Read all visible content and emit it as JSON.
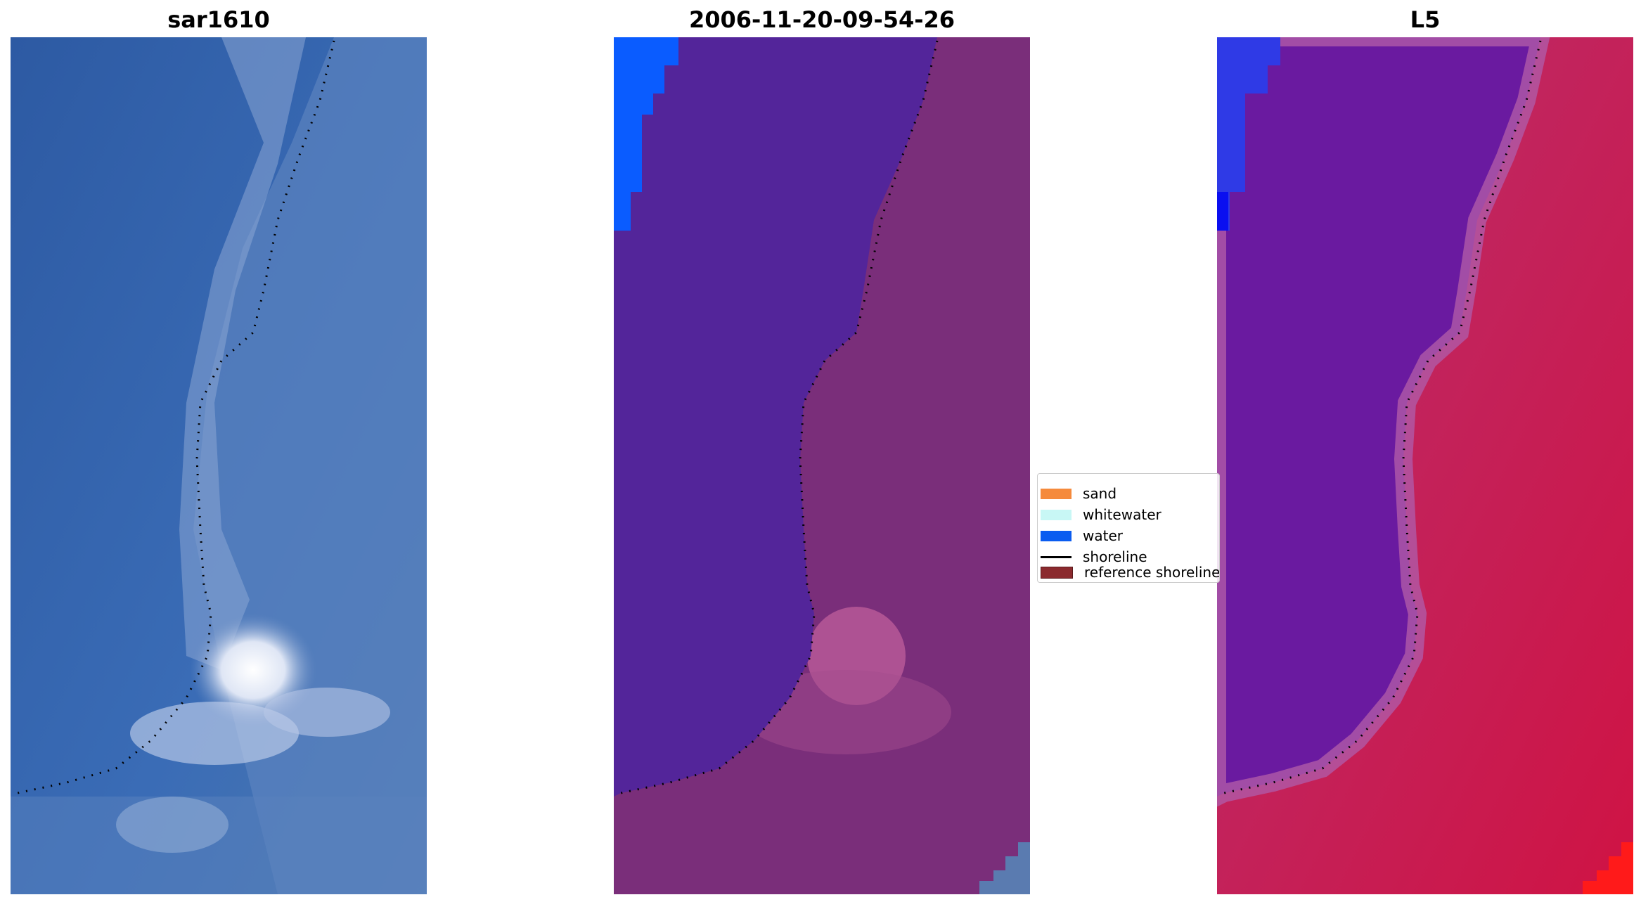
{
  "panels": [
    {
      "title": "sar1610",
      "description": "RGB satellite image of coastline",
      "colors": [
        "#2f5ea8",
        "#5a8ccc",
        "#dfe6f5"
      ]
    },
    {
      "title": "2006-11-20-09-54-26",
      "description": "classified image overlay",
      "colors": [
        "#53259a",
        "#7a2e7a",
        "#0a5cff"
      ]
    },
    {
      "title": "L5",
      "description": "false-colour composite",
      "colors": [
        "#6a1aa0",
        "#c8174a",
        "#2233ff"
      ]
    }
  ],
  "legend": {
    "items": [
      {
        "label": "sand",
        "color": "#f58a3c",
        "type": "patch"
      },
      {
        "label": "whitewater",
        "color": "#c8f7f5",
        "type": "patch"
      },
      {
        "label": "water",
        "color": "#0a5cf0",
        "type": "patch"
      },
      {
        "label": "shoreline",
        "color": "#000000",
        "type": "line"
      },
      {
        "label": "reference shoreline",
        "color": "#8b2a2e",
        "type": "patch"
      }
    ]
  }
}
